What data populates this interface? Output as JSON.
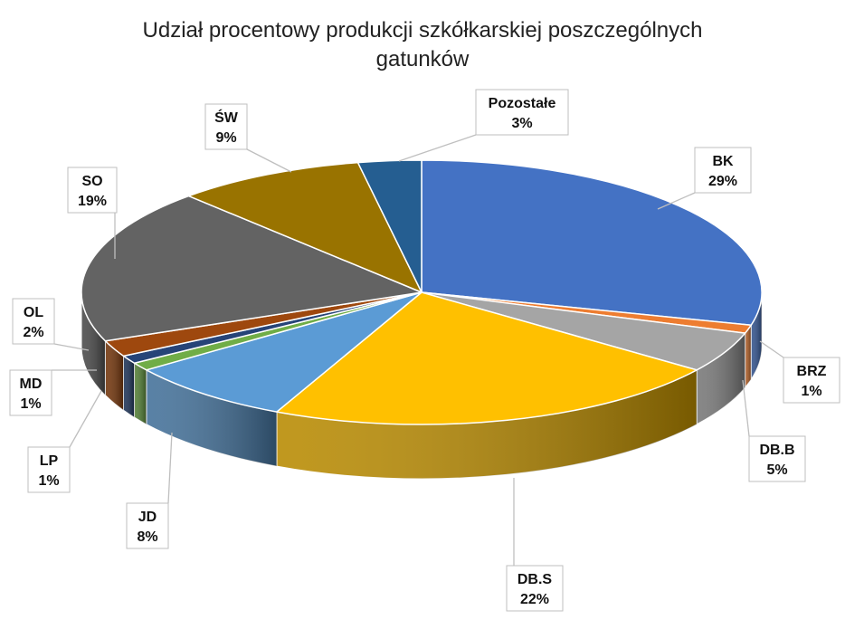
{
  "chart_data": {
    "type": "pie",
    "title_line1": "Udział procentowy produkcji szkółkarskiej poszczególnych",
    "title_line2": "gatunków",
    "slices": [
      {
        "label": "BK",
        "value": 29,
        "value_text": "29%",
        "color": "#4472C4"
      },
      {
        "label": "BRZ",
        "value": 1,
        "value_text": "1%",
        "color": "#ED7D31"
      },
      {
        "label": "DB.B",
        "value": 5,
        "value_text": "5%",
        "color": "#A5A5A5"
      },
      {
        "label": "DB.S",
        "value": 22,
        "value_text": "22%",
        "color": "#FFC000"
      },
      {
        "label": "JD",
        "value": 8,
        "value_text": "8%",
        "color": "#5B9BD5"
      },
      {
        "label": "LP",
        "value": 1,
        "value_text": "1%",
        "color": "#70AD47"
      },
      {
        "label": "MD",
        "value": 1,
        "value_text": "1%",
        "color": "#264478"
      },
      {
        "label": "OL",
        "value": 2,
        "value_text": "2%",
        "color": "#9E480E"
      },
      {
        "label": "SO",
        "value": 19,
        "value_text": "19%",
        "color": "#636363"
      },
      {
        "label": "ŚW",
        "value": 9,
        "value_text": "9%",
        "color": "#997300"
      },
      {
        "label": "Pozostałe",
        "value": 3,
        "value_text": "3%",
        "color": "#255E91"
      }
    ]
  }
}
